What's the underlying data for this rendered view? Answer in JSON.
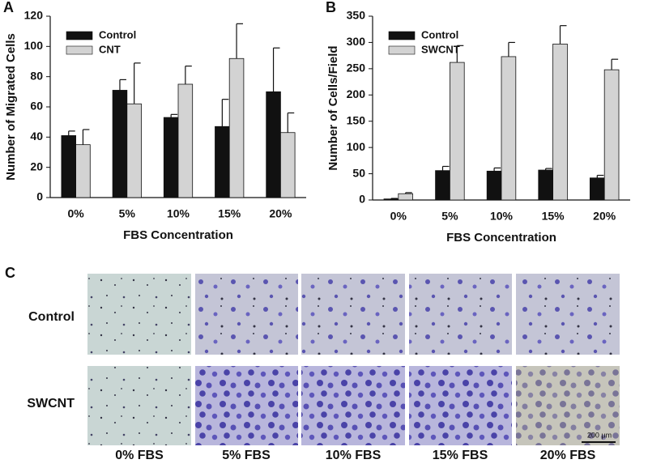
{
  "chart_data": [
    {
      "type": "bar",
      "panel_label": "A",
      "x_label": "FBS Concentration",
      "y_label": "Number of Migrated Cells",
      "categories": [
        "0%",
        "5%",
        "10%",
        "15%",
        "20%"
      ],
      "series": [
        {
          "name": "Control",
          "color": "#111111",
          "values": [
            41,
            71,
            53,
            47,
            70
          ],
          "errors": [
            3,
            7,
            2,
            18,
            29
          ]
        },
        {
          "name": "CNT",
          "color": "#d3d3d3",
          "values": [
            35,
            62,
            75,
            92,
            43
          ],
          "errors": [
            10,
            27,
            12,
            23,
            13
          ]
        }
      ],
      "ylim": [
        0,
        120
      ],
      "yticks": [
        0,
        20,
        40,
        60,
        80,
        100,
        120
      ],
      "legend": "upper left"
    },
    {
      "type": "bar",
      "panel_label": "B",
      "x_label": "FBS Concentration",
      "y_label": "Number of Cells/Field",
      "categories": [
        "0%",
        "5%",
        "10%",
        "15%",
        "20%"
      ],
      "series": [
        {
          "name": "Control",
          "color": "#111111",
          "values": [
            2,
            56,
            55,
            57,
            42
          ],
          "errors": [
            1,
            8,
            6,
            3,
            5
          ]
        },
        {
          "name": "SWCNT",
          "color": "#d3d3d3",
          "values": [
            12,
            262,
            273,
            297,
            248
          ],
          "errors": [
            2,
            32,
            27,
            35,
            20
          ]
        }
      ],
      "ylim": [
        0,
        350
      ],
      "yticks": [
        0,
        50,
        100,
        150,
        200,
        250,
        300,
        350
      ],
      "legend": "upper left"
    }
  ],
  "micrographs": {
    "panel_label": "C",
    "rows": [
      "Control",
      "SWCNT"
    ],
    "columns": [
      "0% FBS",
      "5% FBS",
      "10% FBS",
      "15% FBS",
      "20% FBS"
    ],
    "scale_bar": "200 μm"
  }
}
